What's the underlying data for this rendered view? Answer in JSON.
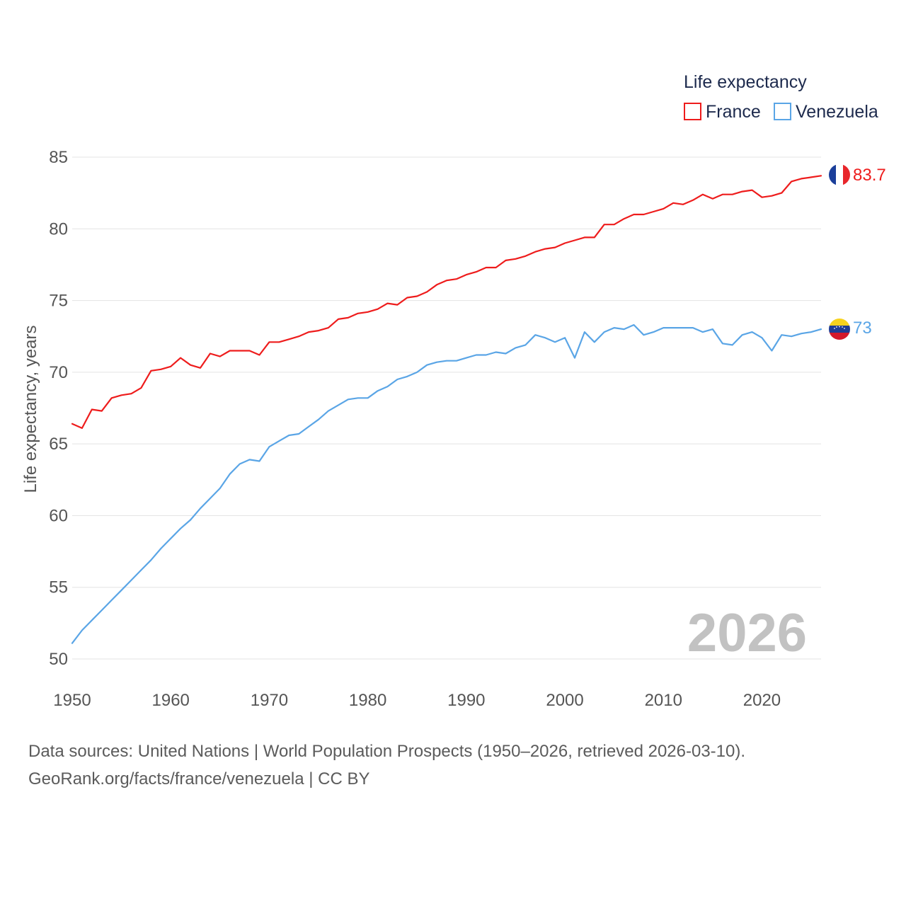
{
  "chart_data": {
    "type": "line",
    "legend_title": "Life expectancy",
    "ylabel": "Life expectancy, years",
    "xlabel": "",
    "year_label": "2026",
    "xlim": [
      1950,
      2026
    ],
    "ylim": [
      50,
      85
    ],
    "x_ticks": [
      1950,
      1960,
      1970,
      1980,
      1990,
      2000,
      2010,
      2020
    ],
    "y_ticks": [
      50,
      55,
      60,
      65,
      70,
      75,
      80,
      85
    ],
    "legend_position": "top-right",
    "grid": true,
    "series": [
      {
        "name": "France",
        "color": "#ee1c1c",
        "flag": "france-flag",
        "end_label": "83.7",
        "start_year": 1950,
        "values": [
          66.4,
          66.1,
          67.4,
          67.3,
          68.2,
          68.4,
          68.5,
          68.9,
          70.1,
          70.2,
          70.4,
          71.0,
          70.5,
          70.3,
          71.3,
          71.1,
          71.5,
          71.5,
          71.5,
          71.2,
          72.1,
          72.1,
          72.3,
          72.5,
          72.8,
          72.9,
          73.1,
          73.7,
          73.8,
          74.1,
          74.2,
          74.4,
          74.8,
          74.7,
          75.2,
          75.3,
          75.6,
          76.1,
          76.4,
          76.5,
          76.8,
          77.0,
          77.3,
          77.3,
          77.8,
          77.9,
          78.1,
          78.4,
          78.6,
          78.7,
          79.0,
          79.2,
          79.4,
          79.4,
          80.3,
          80.3,
          80.7,
          81.0,
          81.0,
          81.2,
          81.4,
          81.8,
          81.7,
          82.0,
          82.4,
          82.1,
          82.4,
          82.4,
          82.6,
          82.7,
          82.2,
          82.3,
          82.5,
          83.3,
          83.5,
          83.6,
          83.7
        ]
      },
      {
        "name": "Venezuela",
        "color": "#5aa5e6",
        "flag": "venezuela-flag",
        "end_label": "73",
        "start_year": 1950,
        "values": [
          51.1,
          52.0,
          52.7,
          53.4,
          54.1,
          54.8,
          55.5,
          56.2,
          56.9,
          57.7,
          58.4,
          59.1,
          59.7,
          60.5,
          61.2,
          61.9,
          62.9,
          63.6,
          63.9,
          63.8,
          64.8,
          65.2,
          65.6,
          65.7,
          66.2,
          66.7,
          67.3,
          67.7,
          68.1,
          68.2,
          68.2,
          68.7,
          69.0,
          69.5,
          69.7,
          70.0,
          70.5,
          70.7,
          70.8,
          70.8,
          71.0,
          71.2,
          71.2,
          71.4,
          71.3,
          71.7,
          71.9,
          72.6,
          72.4,
          72.1,
          72.4,
          71.0,
          72.8,
          72.1,
          72.8,
          73.1,
          73.0,
          73.3,
          72.6,
          72.8,
          73.1,
          73.1,
          73.1,
          73.1,
          72.8,
          73.0,
          72.0,
          71.9,
          72.6,
          72.8,
          72.4,
          71.5,
          72.6,
          72.5,
          72.7,
          72.8,
          73.0
        ]
      }
    ]
  },
  "footer": {
    "source_line": "Data sources: United Nations | World Population Prospects (1950–2026, retrieved 2026-03-10).",
    "credit_line": "GeoRank.org/facts/france/venezuela | CC BY"
  }
}
